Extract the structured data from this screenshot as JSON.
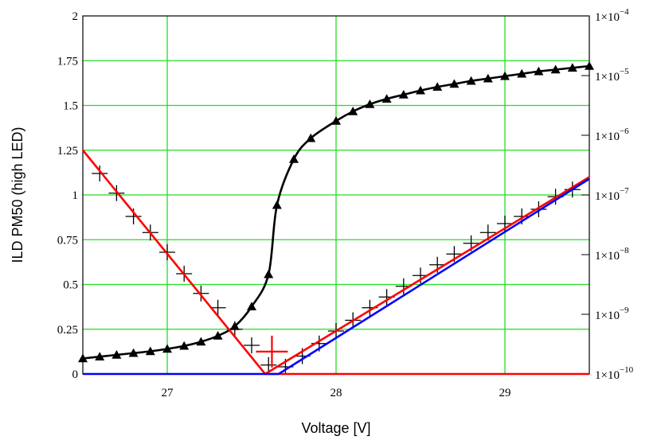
{
  "chart_data": {
    "type": "line",
    "xlabel": "Voltage [V]",
    "ylabel": "ILD PM50 (high LED)",
    "xlim": [
      26.5,
      29.5
    ],
    "ylim": [
      0,
      2
    ],
    "y2lim_log10": [
      -10,
      -4
    ],
    "grid": true,
    "x_ticks": [
      {
        "value": 27,
        "label": "27"
      },
      {
        "value": 28,
        "label": "28"
      },
      {
        "value": 29,
        "label": "29"
      }
    ],
    "y_ticks": [
      {
        "value": 0,
        "label": "0"
      },
      {
        "value": 0.25,
        "label": "0.25"
      },
      {
        "value": 0.5,
        "label": "0.5"
      },
      {
        "value": 0.75,
        "label": "0.75"
      },
      {
        "value": 1,
        "label": "1"
      },
      {
        "value": 1.25,
        "label": "1.25"
      },
      {
        "value": 1.5,
        "label": "1.5"
      },
      {
        "value": 1.75,
        "label": "1.75"
      },
      {
        "value": 2,
        "label": "2"
      }
    ],
    "y2_ticks": [
      {
        "exp": -10,
        "label": "1×10",
        "sup": "−10"
      },
      {
        "exp": -9,
        "label": "1×10",
        "sup": "−9"
      },
      {
        "exp": -8,
        "label": "1×10",
        "sup": "−8"
      },
      {
        "exp": -7,
        "label": "1×10",
        "sup": "−7"
      },
      {
        "exp": -6,
        "label": "1×10",
        "sup": "−6"
      },
      {
        "exp": -5,
        "label": "1×10",
        "sup": "−5"
      },
      {
        "exp": -4,
        "label": "1×10",
        "sup": "−4"
      }
    ],
    "series": [
      {
        "color": "#000000",
        "axis": "right-log",
        "line": "curve",
        "marker": "triangle",
        "x": [
          26.5,
          26.6,
          26.7,
          26.8,
          26.9,
          27.0,
          27.1,
          27.2,
          27.3,
          27.4,
          27.5,
          27.6,
          27.65,
          27.75,
          27.85,
          28.0,
          28.1,
          28.2,
          28.3,
          28.4,
          28.5,
          28.6,
          28.7,
          28.8,
          28.9,
          29.0,
          29.1,
          29.2,
          29.3,
          29.4,
          29.5
        ],
        "y_log10": [
          -9.74,
          -9.71,
          -9.68,
          -9.65,
          -9.62,
          -9.58,
          -9.53,
          -9.46,
          -9.36,
          -9.2,
          -8.87,
          -8.33,
          -7.17,
          -6.4,
          -6.05,
          -5.76,
          -5.6,
          -5.48,
          -5.39,
          -5.32,
          -5.25,
          -5.19,
          -5.14,
          -5.09,
          -5.05,
          -5.01,
          -4.97,
          -4.93,
          -4.9,
          -4.87,
          -4.84
        ]
      },
      {
        "color": "#000000",
        "axis": "left",
        "line": "none",
        "marker": "plus",
        "x": [
          26.6,
          26.7,
          26.8,
          26.9,
          27.0,
          27.1,
          27.2,
          27.3,
          27.4,
          27.5,
          27.6,
          27.7,
          27.8,
          27.9,
          28.0,
          28.1,
          28.2,
          28.3,
          28.4,
          28.5,
          28.6,
          28.7,
          28.8,
          28.9,
          29.0,
          29.1,
          29.2,
          29.3,
          29.4
        ],
        "y": [
          1.12,
          1.01,
          0.88,
          0.79,
          0.68,
          0.56,
          0.45,
          0.37,
          0.25,
          0.16,
          0.05,
          0.04,
          0.1,
          0.17,
          0.24,
          0.3,
          0.37,
          0.43,
          0.49,
          0.55,
          0.61,
          0.67,
          0.73,
          0.79,
          0.84,
          0.88,
          0.92,
          0.99,
          1.03
        ]
      },
      {
        "color": "#ff0000",
        "axis": "left",
        "line": "straight",
        "marker": "none",
        "x": [
          26.5,
          27.58,
          29.5
        ],
        "y": [
          1.25,
          0.0,
          0.0
        ]
      },
      {
        "color": "#ff0000",
        "axis": "left",
        "line": "straight",
        "marker": "none",
        "x": [
          27.58,
          29.5
        ],
        "y": [
          0.0,
          1.1
        ]
      },
      {
        "color": "#0000ff",
        "axis": "left",
        "line": "straight",
        "marker": "none",
        "x": [
          26.5,
          27.66,
          29.5
        ],
        "y": [
          0.0,
          0.0,
          1.09
        ]
      },
      {
        "color": "#ff0000",
        "axis": "left",
        "line": "none",
        "marker": "big-plus",
        "x": [
          27.62
        ],
        "y": [
          0.125
        ]
      }
    ]
  }
}
